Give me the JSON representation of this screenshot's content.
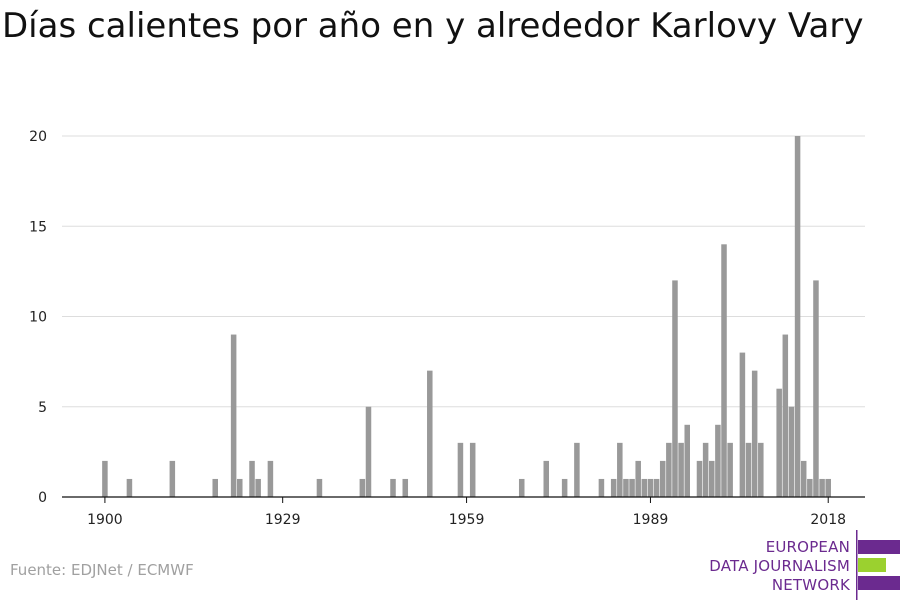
{
  "title": "Días calientes por año en y alrededor Karlovy Vary",
  "source": "Fuente: EDJNet / ECMWF",
  "logo": {
    "lines": [
      "EUROPEAN",
      "DATA JOURNALISM",
      "NETWORK"
    ],
    "colors": {
      "purple": "#6b2a8f",
      "green": "#9bd12f",
      "text": "#6b2a8f"
    }
  },
  "chart_data": {
    "type": "bar",
    "title": "Días calientes por año en y alrededor Karlovy Vary",
    "xlabel": "",
    "ylabel": "",
    "xlim": [
      1893,
      2024
    ],
    "ylim": [
      0,
      20
    ],
    "x_ticks": [
      1900,
      1929,
      1959,
      1989,
      2018
    ],
    "y_ticks": [
      0,
      5,
      10,
      15,
      20
    ],
    "grid": true,
    "bar_color": "#999999",
    "x": [
      1900,
      1904,
      1911,
      1918,
      1921,
      1922,
      1924,
      1925,
      1927,
      1935,
      1942,
      1943,
      1947,
      1949,
      1953,
      1958,
      1960,
      1968,
      1972,
      1975,
      1977,
      1981,
      1983,
      1984,
      1985,
      1986,
      1987,
      1988,
      1989,
      1990,
      1991,
      1992,
      1993,
      1994,
      1995,
      1997,
      1998,
      1999,
      2000,
      2001,
      2002,
      2004,
      2005,
      2006,
      2007,
      2010,
      2011,
      2012,
      2013,
      2014,
      2015,
      2016,
      2017,
      2018
    ],
    "values": [
      2,
      1,
      2,
      1,
      9,
      1,
      2,
      1,
      2,
      1,
      1,
      5,
      1,
      1,
      7,
      3,
      3,
      1,
      2,
      1,
      3,
      1,
      1,
      3,
      1,
      1,
      2,
      1,
      1,
      1,
      2,
      3,
      12,
      3,
      4,
      2,
      3,
      2,
      4,
      14,
      3,
      8,
      3,
      7,
      3,
      6,
      9,
      5,
      20,
      2,
      1,
      12,
      1,
      1
    ]
  }
}
